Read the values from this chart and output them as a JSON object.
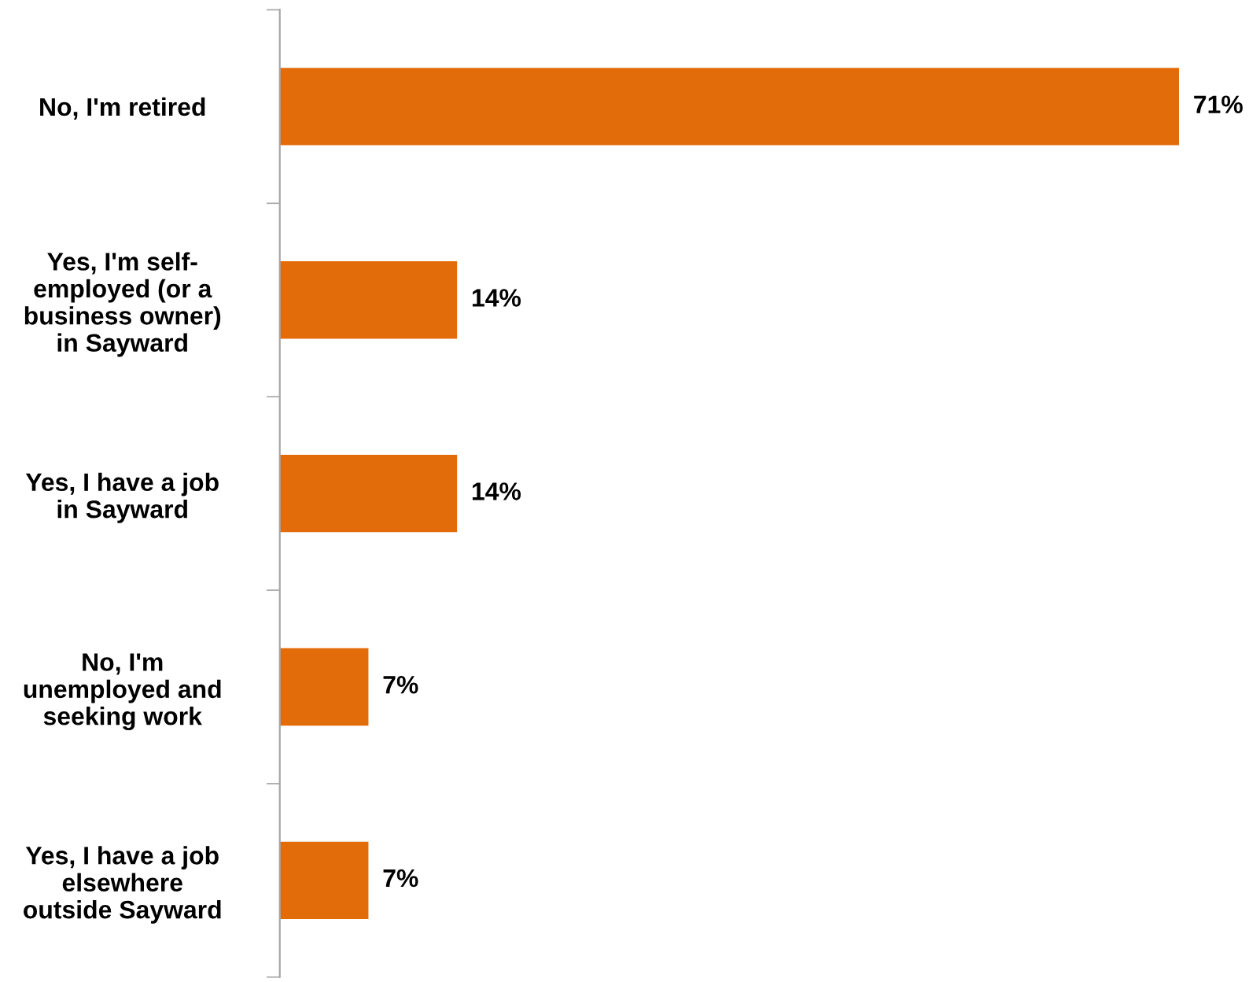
{
  "chart_data": {
    "type": "bar",
    "orientation": "horizontal",
    "categories": [
      "No, I'm retired",
      "Yes, I'm self-\nemployed (or a\nbusiness owner)\nin Sayward",
      "Yes, I have a job\nin Sayward",
      "No, I'm\nunemployed and\nseeking work",
      "Yes, I have a job\nelsewhere\noutside Sayward"
    ],
    "values": [
      71,
      14,
      14,
      7,
      7
    ],
    "value_labels": [
      "71%",
      "14%",
      "14%",
      "7%",
      "7%"
    ],
    "color": "#e36c0a",
    "grid": false,
    "legend": false
  }
}
